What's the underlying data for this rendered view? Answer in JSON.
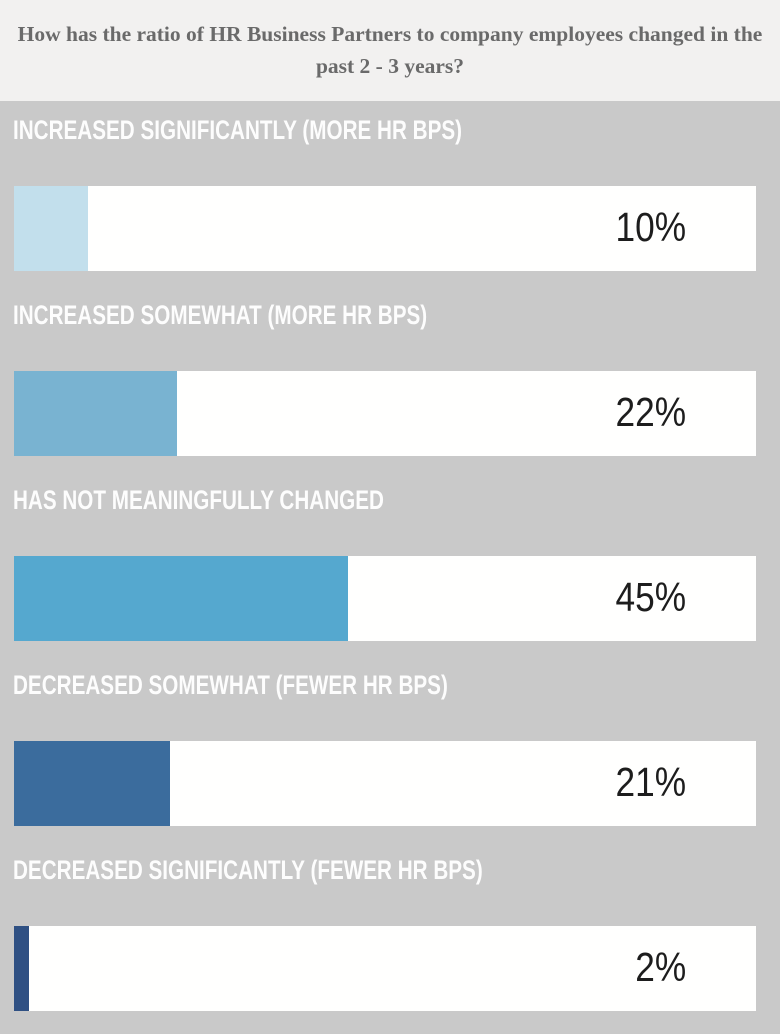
{
  "header": {
    "question": "How has the ratio of HR Business Partners to company employees changed in the past 2 - 3 years?"
  },
  "chart_data": {
    "type": "bar",
    "orientation": "horizontal",
    "title": "How has the ratio of HR Business Partners to company employees changed in the past 2 - 3 years?",
    "categories": [
      "INCREASED SIGNIFICANTLY (MORE HR BPS)",
      "INCREASED SOMEWHAT (MORE HR BPS)",
      "HAS NOT MEANINGFULLY CHANGED",
      "DECREASED SOMEWHAT (FEWER HR BPS)",
      "DECREASED SIGNIFICANTLY (FEWER HR BPS)"
    ],
    "values": [
      10,
      22,
      45,
      21,
      2
    ],
    "value_labels": [
      "10%",
      "22%",
      "45%",
      "21%",
      "2%"
    ],
    "bar_colors": [
      "#c2dfec",
      "#79b3d1",
      "#55a8cf",
      "#3b6c9d",
      "#2f5083"
    ],
    "xlim": [
      0,
      100
    ],
    "grid": false,
    "legend": "none"
  },
  "colors": {
    "page_background": "#f2f1f0",
    "chart_background": "#c9c9c9",
    "track_background": "#fffffe",
    "category_label_text": "#fdfdfd",
    "value_label_text": "#1d1d1d",
    "question_title_text": "#6a6a6a"
  }
}
